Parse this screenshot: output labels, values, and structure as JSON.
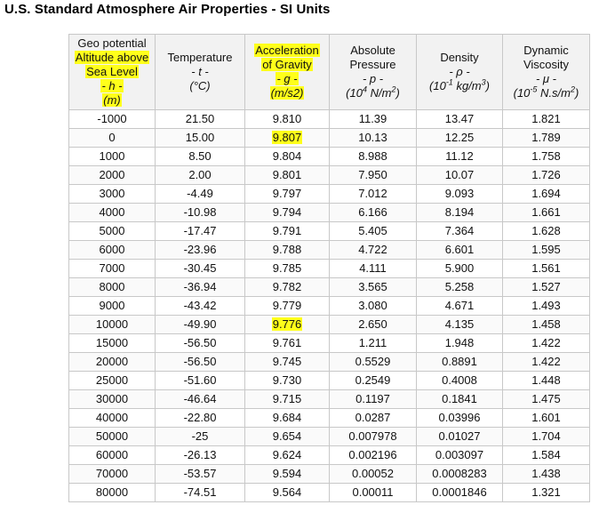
{
  "title": "U.S. Standard Atmosphere Air Properties - SI Units",
  "colors": {
    "highlight": "#ffff1a",
    "header_bg": "#f2f2f2",
    "border": "#c8c8c8"
  },
  "columns": [
    {
      "lines": [
        "Geo potential",
        "Altitude above",
        "Sea Level",
        "- h -",
        "(m)"
      ],
      "highlighted_lines": [
        1,
        2,
        3,
        4
      ]
    },
    {
      "lines": [
        "Temperature",
        "- t -",
        "(°C)"
      ],
      "highlighted_lines": []
    },
    {
      "lines": [
        "Acceleration",
        "of Gravity",
        "- g -",
        "(m/s2)"
      ],
      "highlighted_lines": [
        0,
        1,
        2,
        3
      ]
    },
    {
      "lines": [
        "Absolute",
        "Pressure",
        "- p -",
        "(104 N/m2)"
      ],
      "highlighted_lines": []
    },
    {
      "lines": [
        "Density",
        "- ρ -",
        "(10-1 kg/m3)"
      ],
      "highlighted_lines": []
    },
    {
      "lines": [
        "Dynamic",
        "Viscosity",
        "- μ -",
        "(10-5 N.s/m2)"
      ],
      "highlighted_lines": []
    }
  ],
  "rows": [
    [
      "-1000",
      "21.50",
      "9.810",
      "11.39",
      "13.47",
      "1.821"
    ],
    [
      "0",
      "15.00",
      "9.807",
      "10.13",
      "12.25",
      "1.789"
    ],
    [
      "1000",
      "8.50",
      "9.804",
      "8.988",
      "11.12",
      "1.758"
    ],
    [
      "2000",
      "2.00",
      "9.801",
      "7.950",
      "10.07",
      "1.726"
    ],
    [
      "3000",
      "-4.49",
      "9.797",
      "7.012",
      "9.093",
      "1.694"
    ],
    [
      "4000",
      "-10.98",
      "9.794",
      "6.166",
      "8.194",
      "1.661"
    ],
    [
      "5000",
      "-17.47",
      "9.791",
      "5.405",
      "7.364",
      "1.628"
    ],
    [
      "6000",
      "-23.96",
      "9.788",
      "4.722",
      "6.601",
      "1.595"
    ],
    [
      "7000",
      "-30.45",
      "9.785",
      "4.111",
      "5.900",
      "1.561"
    ],
    [
      "8000",
      "-36.94",
      "9.782",
      "3.565",
      "5.258",
      "1.527"
    ],
    [
      "9000",
      "-43.42",
      "9.779",
      "3.080",
      "4.671",
      "1.493"
    ],
    [
      "10000",
      "-49.90",
      "9.776",
      "2.650",
      "4.135",
      "1.458"
    ],
    [
      "15000",
      "-56.50",
      "9.761",
      "1.211",
      "1.948",
      "1.422"
    ],
    [
      "20000",
      "-56.50",
      "9.745",
      "0.5529",
      "0.8891",
      "1.422"
    ],
    [
      "25000",
      "-51.60",
      "9.730",
      "0.2549",
      "0.4008",
      "1.448"
    ],
    [
      "30000",
      "-46.64",
      "9.715",
      "0.1197",
      "0.1841",
      "1.475"
    ],
    [
      "40000",
      "-22.80",
      "9.684",
      "0.0287",
      "0.03996",
      "1.601"
    ],
    [
      "50000",
      "-25",
      "9.654",
      "0.007978",
      "0.01027",
      "1.704"
    ],
    [
      "60000",
      "-26.13",
      "9.624",
      "0.002196",
      "0.003097",
      "1.584"
    ],
    [
      "70000",
      "-53.57",
      "9.594",
      "0.00052",
      "0.0008283",
      "1.438"
    ],
    [
      "80000",
      "-74.51",
      "9.564",
      "0.00011",
      "0.0001846",
      "1.321"
    ]
  ],
  "highlighted_cells": [
    [
      1,
      2
    ],
    [
      11,
      2
    ]
  ]
}
